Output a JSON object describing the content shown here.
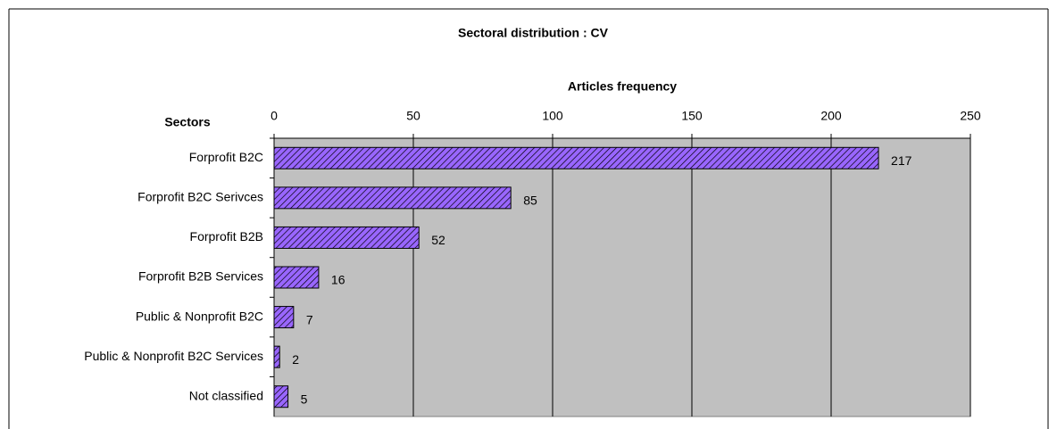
{
  "chart_data": {
    "type": "bar",
    "orientation": "horizontal",
    "title": "Sectoral distribution : CV",
    "x_label": "Articles frequency",
    "y_label": "Sectors",
    "categories": [
      "Forprofit B2C",
      "Forprofit B2C Serivces",
      "Forprofit B2B",
      "Forprofit B2B Services",
      "Public & Nonprofit B2C",
      "Public & Nonprofit B2C Services",
      "Not classified"
    ],
    "values": [
      217,
      85,
      52,
      16,
      7,
      2,
      5
    ],
    "color": "#9966ff",
    "xlim": [
      0,
      250
    ],
    "xticks": [
      0,
      50,
      100,
      150,
      200,
      250
    ],
    "grid": true
  }
}
